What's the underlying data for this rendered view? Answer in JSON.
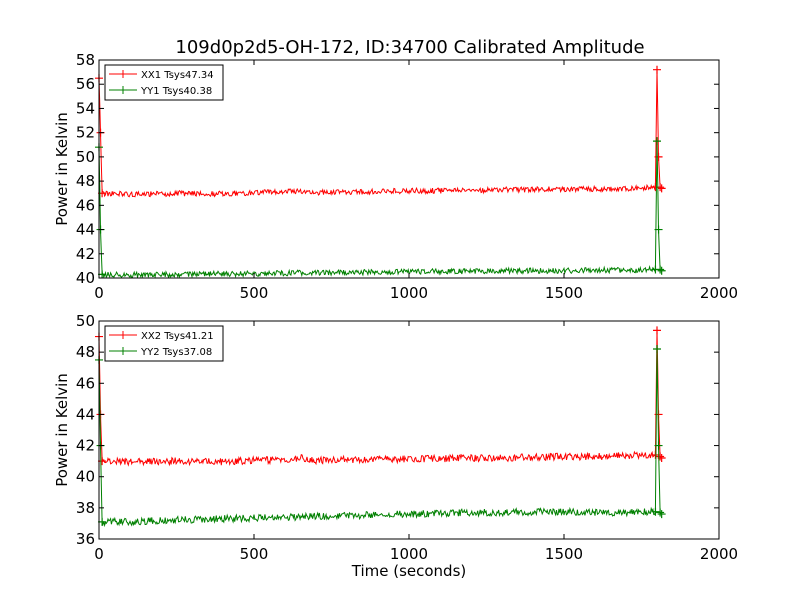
{
  "figure": {
    "title": "109d0p2d5-OH-172, ID:34700 Calibrated Amplitude"
  },
  "chart_data": [
    {
      "type": "line",
      "title": "109d0p2d5-OH-172, ID:34700 Calibrated Amplitude",
      "xlabel": "",
      "ylabel": "Power in Kelvin",
      "xlim": [
        0,
        2000
      ],
      "ylim": [
        40,
        58
      ],
      "xticks": [
        "0",
        "500",
        "1000",
        "1500",
        "2000"
      ],
      "yticks": [
        "40",
        "42",
        "44",
        "46",
        "48",
        "50",
        "52",
        "54",
        "56",
        "58"
      ],
      "grid": false,
      "legend_position": "top-left",
      "series": [
        {
          "name": "XX1 Tsys47.34",
          "color": "#ff0000",
          "x": [
            0,
            5,
            10,
            100,
            200,
            300,
            400,
            500,
            600,
            650,
            700,
            800,
            900,
            1000,
            1100,
            1200,
            1300,
            1400,
            1500,
            1600,
            1700,
            1795,
            1800,
            1805,
            1810,
            1815
          ],
          "y": [
            56.5,
            52.0,
            47.0,
            46.9,
            46.95,
            47.0,
            46.95,
            47.05,
            47.1,
            47.2,
            47.05,
            47.1,
            47.15,
            47.2,
            47.2,
            47.25,
            47.3,
            47.3,
            47.35,
            47.35,
            47.4,
            47.5,
            57.2,
            50.0,
            47.5,
            47.4
          ]
        },
        {
          "name": "YY1 Tsys40.38",
          "color": "#008000",
          "x": [
            0,
            5,
            10,
            100,
            200,
            300,
            400,
            500,
            600,
            700,
            800,
            900,
            1000,
            1100,
            1200,
            1300,
            1400,
            1500,
            1600,
            1700,
            1795,
            1800,
            1805,
            1810,
            1815
          ],
          "y": [
            50.8,
            44.0,
            40.3,
            40.25,
            40.3,
            40.3,
            40.35,
            40.35,
            40.4,
            40.45,
            40.45,
            40.5,
            40.5,
            40.55,
            40.55,
            40.6,
            40.6,
            40.6,
            40.65,
            40.65,
            40.7,
            51.3,
            44.0,
            40.7,
            40.6
          ]
        }
      ]
    },
    {
      "type": "line",
      "title": "",
      "xlabel": "Time (seconds)",
      "ylabel": "Power in Kelvin",
      "xlim": [
        0,
        2000
      ],
      "ylim": [
        36,
        50
      ],
      "xticks": [
        "0",
        "500",
        "1000",
        "1500",
        "2000"
      ],
      "yticks": [
        "36",
        "38",
        "40",
        "42",
        "44",
        "46",
        "48",
        "50"
      ],
      "grid": false,
      "legend_position": "top-left",
      "series": [
        {
          "name": "XX2 Tsys41.21",
          "color": "#ff0000",
          "x": [
            0,
            5,
            10,
            100,
            200,
            300,
            400,
            500,
            600,
            650,
            700,
            800,
            900,
            1000,
            1100,
            1200,
            1300,
            1400,
            1500,
            1600,
            1700,
            1795,
            1800,
            1805,
            1810,
            1815
          ],
          "y": [
            49.0,
            44.0,
            41.0,
            40.95,
            41.0,
            41.0,
            40.95,
            41.05,
            41.1,
            41.2,
            41.05,
            41.1,
            41.1,
            41.15,
            41.15,
            41.2,
            41.2,
            41.25,
            41.3,
            41.3,
            41.35,
            41.4,
            49.4,
            44.0,
            41.3,
            41.2
          ]
        },
        {
          "name": "YY2 Tsys37.08",
          "color": "#008000",
          "x": [
            0,
            5,
            10,
            100,
            200,
            300,
            400,
            500,
            600,
            700,
            800,
            900,
            1000,
            1100,
            1200,
            1300,
            1400,
            1500,
            1600,
            1700,
            1795,
            1800,
            1805,
            1810,
            1815
          ],
          "y": [
            47.5,
            42.0,
            37.1,
            37.1,
            37.2,
            37.25,
            37.3,
            37.35,
            37.4,
            37.45,
            37.5,
            37.55,
            37.6,
            37.65,
            37.7,
            37.7,
            37.75,
            37.75,
            37.7,
            37.7,
            37.75,
            48.2,
            42.0,
            37.7,
            37.6
          ]
        }
      ]
    }
  ]
}
